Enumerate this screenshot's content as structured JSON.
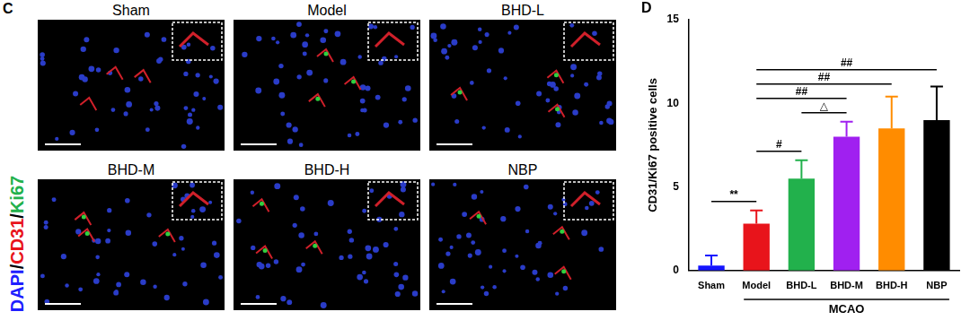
{
  "panel_c": {
    "letter": "C",
    "stain_label": [
      {
        "text": "DAPI",
        "color": "#1f1fff"
      },
      {
        "text": "/",
        "color": "#000000"
      },
      {
        "text": "CD31",
        "color": "#e8141b"
      },
      {
        "text": "/",
        "color": "#000000"
      },
      {
        "text": "Ki67",
        "color": "#22b14c"
      }
    ],
    "titles": [
      "Sham",
      "Model",
      "BHD-L",
      "BHD-M",
      "BHD-H",
      "NBP"
    ]
  },
  "chart_data": {
    "panel": "D",
    "type": "bar",
    "categories": [
      "Sham",
      "Model",
      "BHD-L",
      "BHD-M",
      "BHD-H",
      "NBP"
    ],
    "values": [
      0.3,
      2.8,
      5.5,
      8.0,
      8.5,
      9.0
    ],
    "errors": [
      0.6,
      0.8,
      1.1,
      0.9,
      1.9,
      2.0
    ],
    "colors": [
      "#1515ff",
      "#e8141b",
      "#22b14c",
      "#a020f0",
      "#ff8c00",
      "#000000"
    ],
    "y_label": "CD31/Ki67 positive cells",
    "ylim": [
      0,
      15
    ],
    "yticks": [
      0,
      5,
      10,
      15
    ],
    "grid": false,
    "groups": [
      {
        "label": "MCAO",
        "from": "Model",
        "to": "NBP"
      }
    ],
    "annotations": [
      {
        "from": "Sham",
        "to": "Model",
        "label": "**"
      },
      {
        "from": "Model",
        "to": "BHD-L",
        "label": "#"
      },
      {
        "from": "Model",
        "to": "BHD-M",
        "label": "##"
      },
      {
        "from": "Model",
        "to": "BHD-H",
        "label": "##"
      },
      {
        "from": "Model",
        "to": "NBP",
        "label": "##"
      },
      {
        "from": "BHD-L",
        "to": "BHD-M",
        "label": "△"
      }
    ]
  }
}
